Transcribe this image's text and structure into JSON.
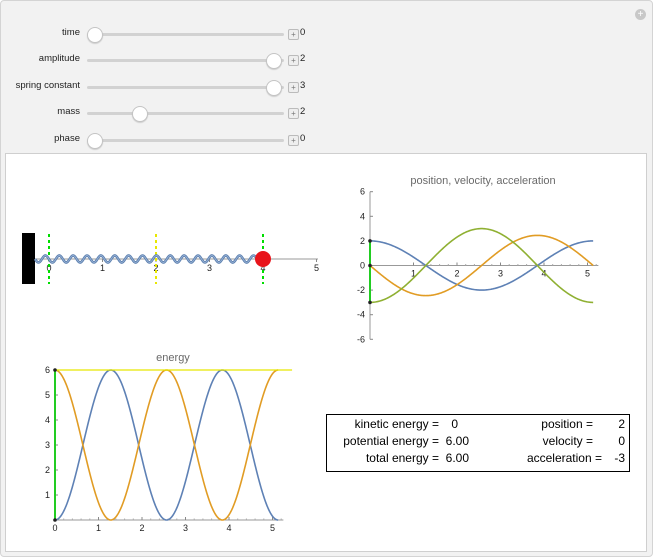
{
  "controls": [
    {
      "label": "time",
      "value": "0",
      "fraction": 0.0
    },
    {
      "label": "amplitude",
      "value": "2",
      "fraction": 0.95
    },
    {
      "label": "spring constant",
      "value": "3",
      "fraction": 0.95
    },
    {
      "label": "mass",
      "value": "2",
      "fraction": 0.27
    },
    {
      "label": "phase",
      "value": "0",
      "fraction": 0.0
    }
  ],
  "spring_view": {
    "ticks": [
      "0",
      "1",
      "2",
      "3",
      "4",
      "5"
    ],
    "equilibrium_x": 2,
    "mass_x": 4,
    "wall_x": 0,
    "colors": {
      "spring": "#5c80b0",
      "mass": "#e8141b",
      "equilibrium": "#e8e800",
      "amplitude_marks": "#00dd00",
      "wall": "#000000"
    }
  },
  "chart_data": [
    {
      "type": "line",
      "title": "position, velocity, acceleration",
      "xlim": [
        0,
        5.25
      ],
      "ylim": [
        -6,
        6
      ],
      "xticks": [
        "1",
        "2",
        "3",
        "4",
        "5"
      ],
      "yticks": [
        "6",
        "4",
        "2",
        "0",
        "-2",
        "-4",
        "-6"
      ],
      "series": [
        {
          "color": "#5e81b5",
          "amplitude": 2,
          "omega": 1.2247,
          "kind": "cos"
        },
        {
          "color": "#e19c24",
          "amplitude": 2.449,
          "omega": 1.2247,
          "kind": "-sin"
        },
        {
          "color": "#8fb032",
          "amplitude": 3,
          "omega": 1.2247,
          "kind": "-cos"
        }
      ]
    },
    {
      "type": "line",
      "title": "energy",
      "xlim": [
        0,
        5.25
      ],
      "ylim": [
        0,
        6
      ],
      "xticks": [
        "0",
        "1",
        "2",
        "3",
        "4",
        "5"
      ],
      "yticks": [
        "6",
        "5",
        "4",
        "3",
        "2",
        "1"
      ],
      "series": [
        {
          "color": "#5e81b5",
          "kind": "kinetic",
          "total": 6,
          "omega": 1.2247
        },
        {
          "color": "#e19c24",
          "kind": "potential",
          "total": 6,
          "omega": 1.2247
        },
        {
          "color": "#e8e800",
          "kind": "total",
          "total": 6
        }
      ]
    }
  ],
  "readout": {
    "kinetic_label": "kinetic energy =",
    "kinetic_value": "0",
    "potential_label": "potential energy =",
    "potential_value": "6.00",
    "total_label": "total energy =",
    "total_value": "6.00",
    "position_label": "position =",
    "position_value": "2",
    "velocity_label": "velocity =",
    "velocity_value": "0",
    "acceleration_label": "acceleration =",
    "acceleration_value": "-3"
  }
}
